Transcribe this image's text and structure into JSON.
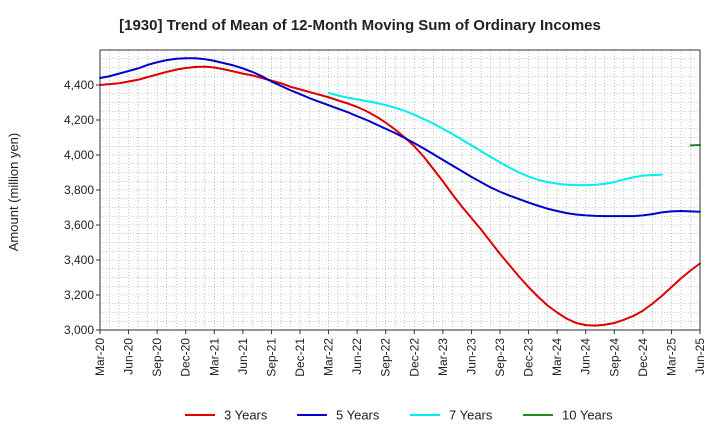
{
  "chart_data": {
    "type": "line",
    "title": "[1930]  Trend of Mean of 12-Month Moving Sum of Ordinary Incomes",
    "xlabel": "",
    "ylabel": "Amount (million yen)",
    "ylim": [
      3000,
      4600
    ],
    "yticks": [
      3000,
      3200,
      3400,
      3600,
      3800,
      4000,
      4200,
      4400
    ],
    "ytick_labels": [
      "3,000",
      "3,200",
      "3,400",
      "3,600",
      "3,800",
      "4,000",
      "4,200",
      "4,400"
    ],
    "x_start": "Mar-20",
    "x_end": "Jun-25",
    "x_tick_labels": [
      "Mar-20",
      "Jun-20",
      "Sep-20",
      "Dec-20",
      "Mar-21",
      "Jun-21",
      "Sep-21",
      "Dec-21",
      "Mar-22",
      "Jun-22",
      "Sep-22",
      "Dec-22",
      "Mar-23",
      "Jun-23",
      "Sep-23",
      "Dec-23",
      "Mar-24",
      "Jun-24",
      "Sep-24",
      "Dec-24",
      "Mar-25",
      "Jun-25"
    ],
    "grid": true,
    "legend_position": "bottom",
    "series": [
      {
        "name": "3 Years",
        "color": "#dd0000",
        "start_index": 0,
        "values": [
          4400,
          4405,
          4410,
          4420,
          4430,
          4445,
          4460,
          4475,
          4488,
          4497,
          4503,
          4505,
          4500,
          4490,
          4478,
          4465,
          4455,
          4440,
          4425,
          4410,
          4390,
          4375,
          4360,
          4345,
          4330,
          4312,
          4295,
          4275,
          4250,
          4220,
          4185,
          4145,
          4100,
          4050,
          3990,
          3920,
          3850,
          3775,
          3705,
          3640,
          3575,
          3505,
          3435,
          3370,
          3305,
          3245,
          3190,
          3140,
          3100,
          3065,
          3040,
          3028,
          3025,
          3030,
          3040,
          3058,
          3080,
          3110,
          3150,
          3195,
          3245,
          3295,
          3340,
          3380
        ]
      },
      {
        "name": "5 Years",
        "color": "#0000cc",
        "start_index": 0,
        "values": [
          4440,
          4450,
          4465,
          4480,
          4495,
          4515,
          4530,
          4542,
          4550,
          4553,
          4553,
          4548,
          4538,
          4525,
          4512,
          4495,
          4475,
          4450,
          4420,
          4395,
          4370,
          4348,
          4325,
          4305,
          4285,
          4265,
          4245,
          4222,
          4200,
          4175,
          4150,
          4125,
          4097,
          4068,
          4037,
          4005,
          3972,
          3940,
          3908,
          3875,
          3845,
          3815,
          3790,
          3768,
          3748,
          3728,
          3710,
          3693,
          3680,
          3668,
          3660,
          3655,
          3652,
          3651,
          3651,
          3651,
          3651,
          3655,
          3662,
          3672,
          3678,
          3680,
          3678,
          3676
        ]
      },
      {
        "name": "7 Years",
        "color": "#00eeee",
        "start_index": 24,
        "values": [
          4355,
          4340,
          4328,
          4318,
          4308,
          4298,
          4285,
          4270,
          4252,
          4230,
          4205,
          4180,
          4150,
          4120,
          4088,
          4055,
          4022,
          3990,
          3958,
          3928,
          3900,
          3877,
          3858,
          3845,
          3836,
          3831,
          3828,
          3828,
          3830,
          3835,
          3845,
          3860,
          3873,
          3882,
          3885,
          3888
        ]
      },
      {
        "name": "10 Years",
        "color": "#228822",
        "start_index": 62,
        "values": [
          4055,
          4057
        ]
      }
    ]
  }
}
